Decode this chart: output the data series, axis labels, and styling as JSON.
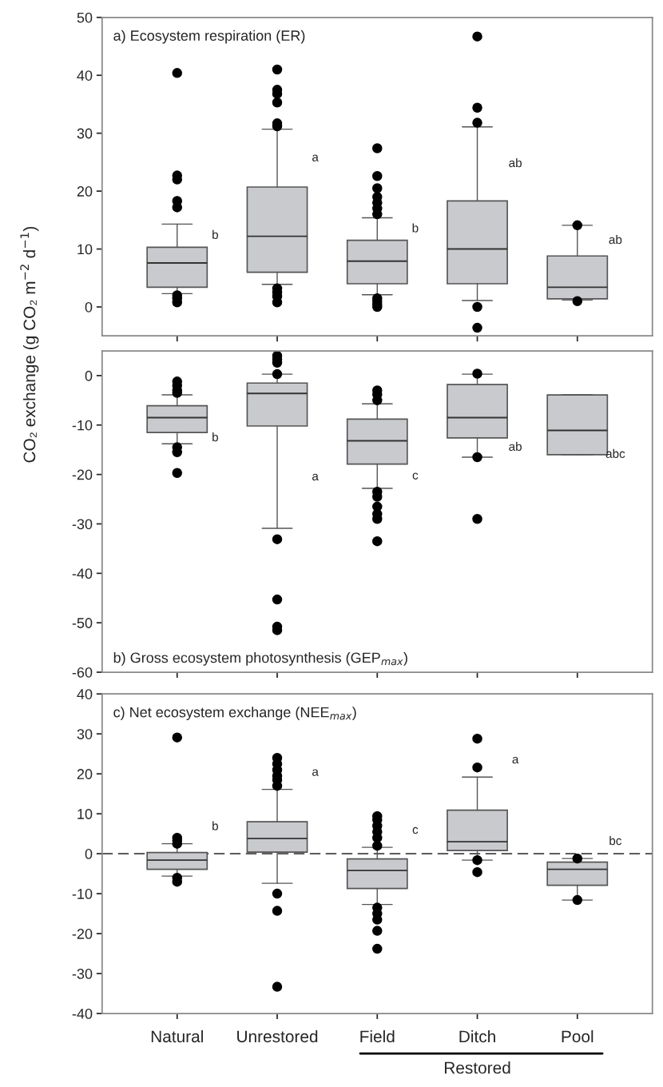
{
  "chart_data": [
    {
      "type": "box",
      "title": "a) Ecosystem respiration (ER)",
      "categories": [
        null,
        null,
        null,
        null,
        null
      ],
      "ylim": [
        -5,
        50
      ],
      "yticks": [
        0,
        10,
        20,
        30,
        40,
        50
      ],
      "tick_labels": "y",
      "grid": false,
      "color": "#c8cacd",
      "boxes": [
        {
          "low": 2.3,
          "q1": 3.4,
          "median": 7.6,
          "q3": 10.3,
          "high": 14.3,
          "outliers": [
            40.4,
            22.7,
            22.0,
            18.3,
            17.2,
            2.0,
            1.5,
            0.8
          ]
        },
        {
          "low": 3.9,
          "q1": 6.0,
          "median": 12.2,
          "q3": 20.7,
          "high": 30.7,
          "outliers": [
            41.0,
            37.5,
            36.8,
            35.3,
            31.7,
            31.2,
            3.2,
            2.5,
            1.8,
            0.8
          ]
        },
        {
          "low": 2.1,
          "q1": 4.0,
          "median": 7.9,
          "q3": 11.5,
          "high": 15.4,
          "outliers": [
            27.4,
            22.6,
            20.5,
            19.0,
            18.0,
            17.0,
            16.0,
            1.5,
            1.0,
            0.5,
            0.0
          ]
        },
        {
          "low": 1.1,
          "q1": 4.0,
          "median": 10.0,
          "q3": 18.3,
          "high": 31.1,
          "outliers": [
            46.7,
            34.4,
            31.8,
            0.0,
            -3.6
          ]
        },
        {
          "low": 1.2,
          "q1": 1.4,
          "median": 3.4,
          "q3": 8.8,
          "high": 14.1,
          "outliers": [
            14.1,
            1.0
          ]
        }
      ],
      "annotations": [
        "b",
        "a",
        "b",
        "ab",
        "ab"
      ]
    },
    {
      "type": "box",
      "title": "b) Gross ecosystem photosynthesis (GEP$_{max}$)",
      "ylabel": "CO₂ exchange (g CO₂ m$^{−2}$ d$^{−1}$)",
      "categories": [
        null,
        null,
        null,
        null,
        null
      ],
      "ylim": [
        -60,
        5
      ],
      "yticks": [
        -60,
        -50,
        -40,
        -30,
        -20,
        -10,
        0
      ],
      "tick_labels": "y",
      "grid": false,
      "color": "#c8cacd",
      "boxes": [
        {
          "low": -13.8,
          "q1": -11.5,
          "median": -8.5,
          "q3": -6.1,
          "high": -3.9,
          "outliers": [
            -1.2,
            -2.0,
            -3.0,
            -3.5,
            -14.5,
            -15.5,
            -19.7
          ]
        },
        {
          "low": -30.9,
          "q1": -10.2,
          "median": -3.6,
          "q3": -1.5,
          "high": 0.3,
          "outliers": [
            4.0,
            3.3,
            2.6,
            0.3,
            -33.1,
            -45.3,
            -50.8,
            -51.5
          ]
        },
        {
          "low": -22.8,
          "q1": -17.9,
          "median": -13.2,
          "q3": -8.8,
          "high": -5.7,
          "outliers": [
            -3.0,
            -3.8,
            -5.0,
            -23.5,
            -24.5,
            -26.5,
            -28.0,
            -29.0,
            -33.5
          ]
        },
        {
          "low": -16.5,
          "q1": -12.6,
          "median": -8.5,
          "q3": -1.8,
          "high": 0.3,
          "outliers": [
            0.4,
            -16.5,
            -29.0
          ]
        },
        {
          "low": -16.0,
          "q1": -16.0,
          "median": -11.1,
          "q3": -3.9,
          "high": -3.9
        }
      ],
      "annotations": [
        "b",
        "a",
        "c",
        "ab",
        "abc"
      ]
    },
    {
      "type": "box",
      "title": "c) Net ecosystem exchange (NEE$_{max}$)",
      "categories": [
        "Natural",
        "Unrestored",
        "Field",
        "Ditch",
        "Pool"
      ],
      "ylim": [
        -40,
        40
      ],
      "yticks": [
        -40,
        -30,
        -20,
        -10,
        0,
        10,
        20,
        30,
        40
      ],
      "grid": false,
      "color": "#c8cacd",
      "boxes": [
        {
          "low": -5.6,
          "q1": -3.9,
          "median": -1.6,
          "q3": 0.3,
          "high": 2.5,
          "outliers": [
            29.1,
            4.0,
            3.3,
            2.5,
            -6.0,
            -7.0
          ]
        },
        {
          "low": -7.4,
          "q1": 0.4,
          "median": 3.8,
          "q3": 8.0,
          "high": 16.1,
          "outliers": [
            24.0,
            22.5,
            21.0,
            19.5,
            18.5,
            17.0,
            -10.0,
            -14.3,
            -33.3
          ]
        },
        {
          "low": -12.7,
          "q1": -8.7,
          "median": -4.2,
          "q3": -1.3,
          "high": 1.6,
          "outliers": [
            9.4,
            8.5,
            7.0,
            5.5,
            4.0,
            2.0,
            -13.5,
            -15.0,
            -16.5,
            -19.3,
            -23.8
          ]
        },
        {
          "low": -1.6,
          "q1": 0.8,
          "median": 3.0,
          "q3": 10.9,
          "high": 19.2,
          "outliers": [
            28.8,
            21.6,
            -1.6,
            -4.6
          ]
        },
        {
          "low": -11.6,
          "q1": -7.9,
          "median": -3.9,
          "q3": -2.1,
          "high": -1.2,
          "outliers": [
            -1.2,
            -11.6
          ]
        }
      ],
      "ref_lines": [
        {
          "axis": "y",
          "value": 0,
          "line_style": "dashed",
          "color": "#444444"
        }
      ],
      "annotations": [
        "b",
        "a",
        "c",
        "a",
        "bc",
        "Restored"
      ]
    }
  ]
}
